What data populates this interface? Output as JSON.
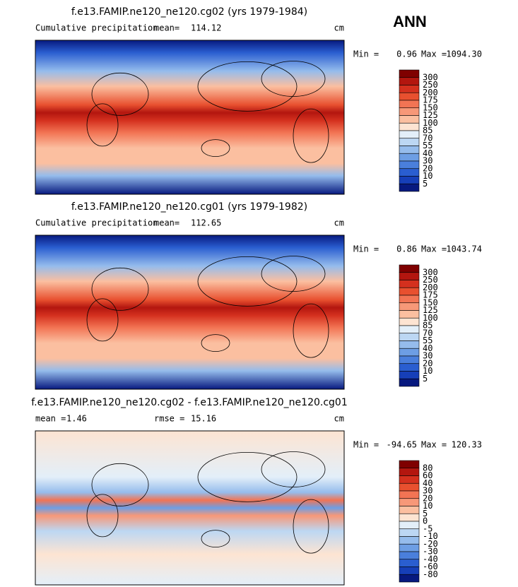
{
  "header": {
    "season": "ANN"
  },
  "palette": [
    "#7f0000",
    "#b3160f",
    "#d4301e",
    "#e8502f",
    "#f27454",
    "#f79878",
    "#fbbfa0",
    "#fde4d2",
    "#e3eff9",
    "#bcd7f3",
    "#95bcec",
    "#6d9ee4",
    "#4a7fdc",
    "#2a5ed0",
    "#163fb8",
    "#07197f"
  ],
  "panels": [
    {
      "title": "f.e13.FAMIP.ne120_ne120.cg02 (yrs 1979-1984)",
      "left_label": "Cumulative precipitation",
      "stat1_label": "mean=",
      "stat1": "114.12",
      "units": "cm",
      "min_label": "Min =",
      "min": "0.96",
      "max_label": "Max =",
      "max": "1094.30",
      "levels": [
        "300",
        "250",
        "200",
        "175",
        "150",
        "125",
        "100",
        "85",
        "70",
        "55",
        "40",
        "30",
        "20",
        "10",
        "5"
      ]
    },
    {
      "title": "f.e13.FAMIP.ne120_ne120.cg01 (yrs 1979-1982)",
      "left_label": "Cumulative precipitation",
      "stat1_label": "mean=",
      "stat1": "112.65",
      "units": "cm",
      "min_label": "Min =",
      "min": "0.86",
      "max_label": "Max =",
      "max": "1043.74",
      "levels": [
        "300",
        "250",
        "200",
        "175",
        "150",
        "125",
        "100",
        "85",
        "70",
        "55",
        "40",
        "30",
        "20",
        "10",
        "5"
      ]
    },
    {
      "title": "f.e13.FAMIP.ne120_ne120.cg02 - f.e13.FAMIP.ne120_ne120.cg01",
      "stat1_label": "mean =",
      "stat1": "1.46",
      "stat2_label": "rmse =",
      "stat2": "15.16",
      "units": "cm",
      "min_label": "Min =",
      "min": "-94.65",
      "max_label": "Max =",
      "max": "120.33",
      "levels": [
        "80",
        "60",
        "40",
        "30",
        "20",
        "10",
        "5",
        "0",
        "-5",
        "-10",
        "-20",
        "-30",
        "-40",
        "-60",
        "-80"
      ]
    }
  ]
}
